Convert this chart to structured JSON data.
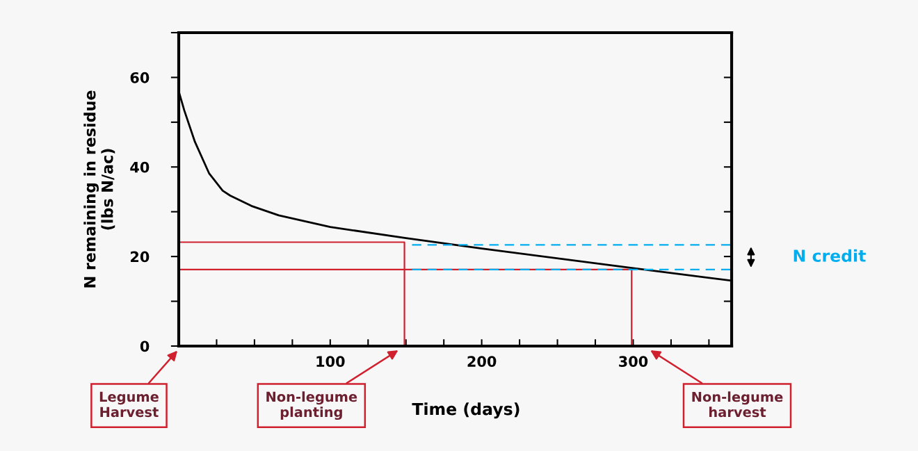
{
  "chart_data": {
    "type": "line",
    "xlabel": "Time (days)",
    "ylabel": "N remaining in residue\n(lbs N/ac)",
    "xlim": [
      0,
      365
    ],
    "ylim": [
      0,
      70
    ],
    "xticks": [
      {
        "value": 25,
        "label": null
      },
      {
        "value": 50,
        "label": null
      },
      {
        "value": 75,
        "label": null
      },
      100,
      {
        "value": 125,
        "label": null
      },
      {
        "value": 150,
        "label": null
      },
      {
        "value": 175,
        "label": null
      },
      200,
      {
        "value": 225,
        "label": null
      },
      {
        "value": 250,
        "label": null
      },
      {
        "value": 275,
        "label": null
      },
      300,
      {
        "value": 325,
        "label": null
      },
      {
        "value": 350,
        "label": null
      }
    ],
    "yticks": [
      0,
      {
        "value": 10,
        "label": null
      },
      20,
      {
        "value": 30,
        "label": null
      },
      40,
      {
        "value": 50,
        "label": null
      },
      60,
      {
        "value": 70,
        "label": null
      }
    ],
    "grid": false,
    "marker": "none",
    "series": [
      {
        "color": "#000000",
        "line_style": "solid",
        "x": [
          0,
          3.7,
          10.7,
          20,
          29,
          34,
          48,
          66,
          100,
          150,
          200,
          300,
          365
        ],
        "values": [
          56.9,
          52.6,
          45.6,
          38.6,
          34.7,
          33.6,
          31.3,
          29.2,
          26.6,
          24.1,
          21.8,
          17.4,
          14.6
        ]
      },
      {
        "color": "#d0202e",
        "line_style": "solid",
        "x": [
          0,
          149,
          149
        ],
        "values": [
          23.2,
          23.2,
          0
        ]
      },
      {
        "color": "#d0202e",
        "line_style": "solid",
        "x": [
          0,
          299,
          299
        ],
        "values": [
          17.1,
          17.1,
          0
        ]
      },
      {
        "color": "#00aeef",
        "line_style": "dashed",
        "x": [
          154,
          365
        ],
        "values": [
          22.6,
          22.6
        ]
      },
      {
        "color": "#00aeef",
        "line_style": "dashed",
        "x": [
          154,
          365
        ],
        "values": [
          17.1,
          17.1
        ]
      }
    ],
    "annotations": [
      "Legume\nHarvest",
      "Non-legume\nplanting",
      "Non-legume\nharvest",
      "N credit"
    ]
  }
}
